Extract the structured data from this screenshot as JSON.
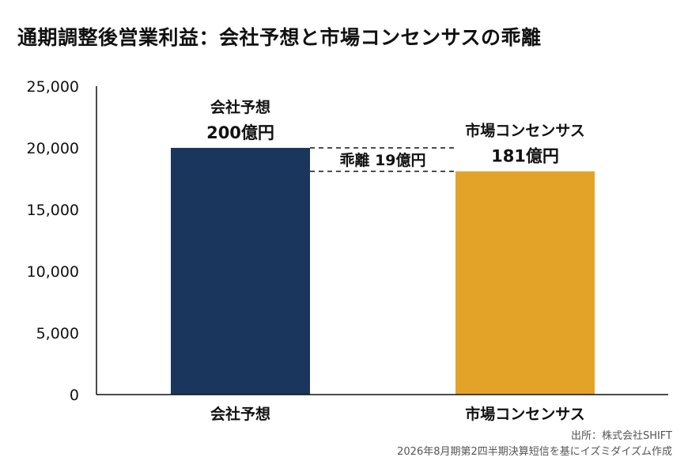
{
  "title": "通期調整後営業利益：会社予想と市場コンセンサスの乖離",
  "source": {
    "line1": "出所：株式会社SHIFT",
    "line2": "2026年8月期第2四半期決算短信を基にイズミダイズム作成"
  },
  "colors": {
    "company": "#1b365d",
    "consensus": "#e3a329",
    "axis": "#111111",
    "dash": "#111111"
  },
  "chart_data": {
    "type": "bar",
    "categories": [
      "会社予想",
      "市場コンセンサス"
    ],
    "values": [
      20000,
      18100
    ],
    "value_labels": [
      [
        "会社予想",
        "200億円"
      ],
      [
        "市場コンセンサス",
        "181億円"
      ]
    ],
    "ylim": [
      0,
      25000
    ],
    "yticks": [
      0,
      5000,
      10000,
      15000,
      20000,
      25000
    ],
    "ytick_labels": [
      "0",
      "5,000",
      "10,000",
      "15,000",
      "20,000",
      "25,000"
    ],
    "annotation": "乖離 19億円",
    "grid": false,
    "xlabel": "",
    "ylabel": ""
  }
}
